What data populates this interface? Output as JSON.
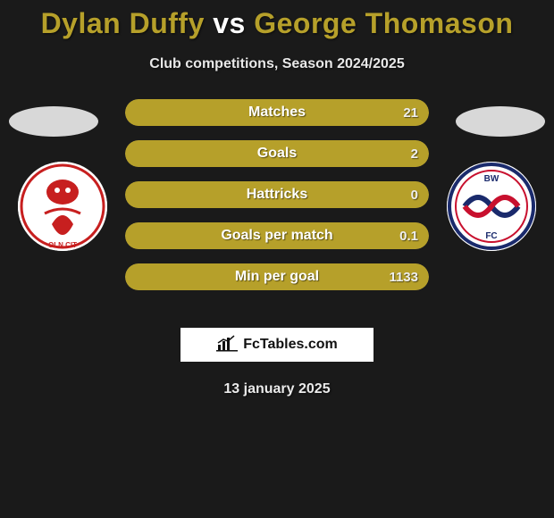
{
  "title": {
    "prefix": "Dylan Duffy",
    "vs": "vs",
    "suffix": "George Thomason",
    "prefix_color": "#b6a02a",
    "vs_color": "#ffffff",
    "suffix_color": "#b6a02a"
  },
  "subtitle": "Club competitions, Season 2024/2025",
  "left_team_color": "#b6a02a",
  "right_team_color": "#3a3a3a",
  "bars": [
    {
      "label": "Matches",
      "left": "",
      "right": "21",
      "left_pct": 0,
      "right_pct": 100
    },
    {
      "label": "Goals",
      "left": "",
      "right": "2",
      "left_pct": 0,
      "right_pct": 100
    },
    {
      "label": "Hattricks",
      "left": "",
      "right": "0",
      "left_pct": 0,
      "right_pct": 100
    },
    {
      "label": "Goals per match",
      "left": "",
      "right": "0.1",
      "left_pct": 0,
      "right_pct": 100
    },
    {
      "label": "Min per goal",
      "left": "",
      "right": "1133",
      "left_pct": 0,
      "right_pct": 100
    }
  ],
  "brand": "FcTables.com",
  "date": "13 january 2025",
  "bar_bg_color": "#555555",
  "fill_color": "#b6a02a"
}
